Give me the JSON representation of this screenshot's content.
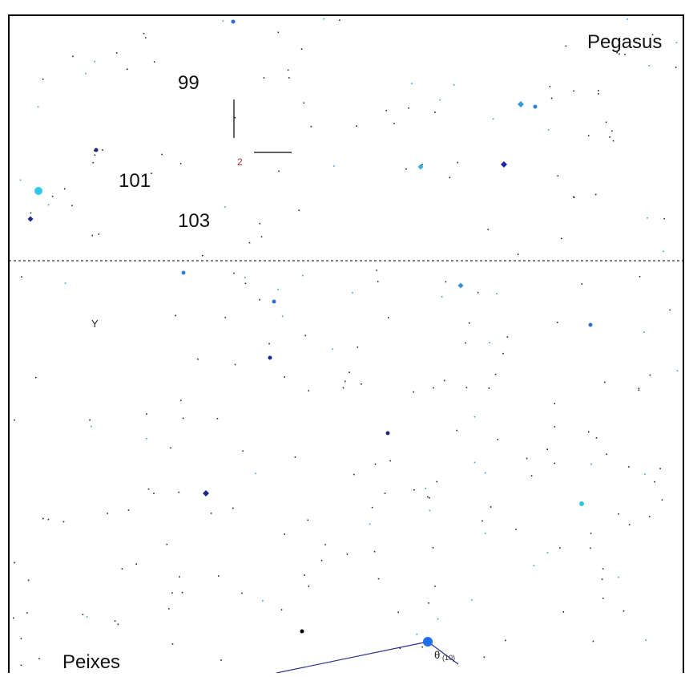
{
  "labels": {
    "constellations": [
      "Pegasus",
      "Peixes"
    ],
    "numbers": [
      "99",
      "101",
      "103"
    ],
    "marker": "2",
    "greek": [
      "Y",
      "θ"
    ],
    "magnitude": "(10)"
  }
}
